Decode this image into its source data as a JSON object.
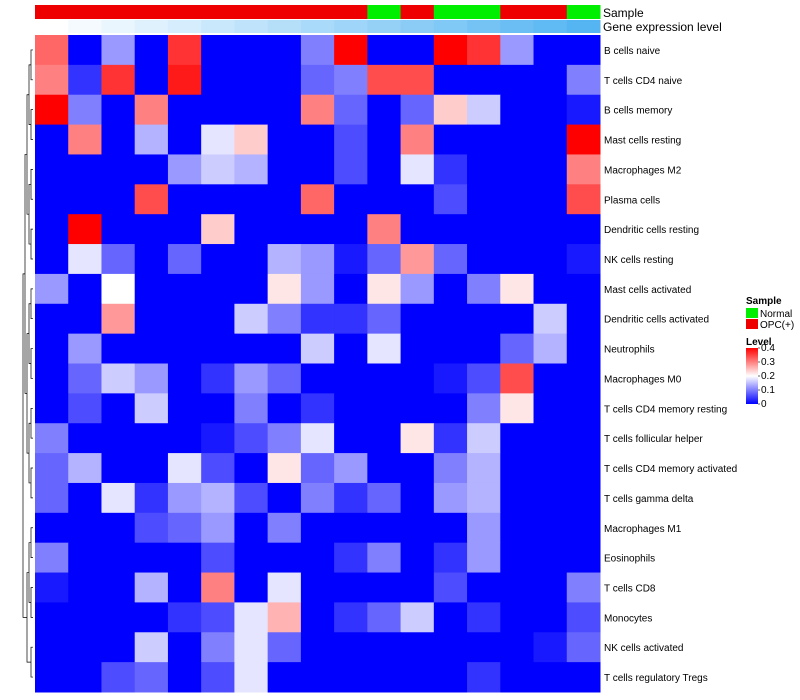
{
  "chart_data": {
    "type": "heatmap",
    "annotation_labels": {
      "sample": "Sample",
      "gene_expression": "Gene expression level"
    },
    "rows": [
      "B cells naive",
      "T cells CD4 naive",
      "B cells memory",
      "Mast cells resting",
      "Macrophages M2",
      "Plasma cells",
      "Dendritic cells resting",
      "NK cells resting",
      "Mast cells activated",
      "Dendritic cells activated",
      "Neutrophils",
      "Macrophages M0",
      "T cells CD4 memory resting",
      "T cells follicular helper",
      "T cells CD4 memory activated",
      "T cells gamma delta",
      "Macrophages M1",
      "Eosinophils",
      "T cells CD8",
      "Monocytes",
      "NK cells activated",
      "T cells regulatory  Tregs"
    ],
    "sample_groups": [
      "OPC(+)",
      "OPC(+)",
      "OPC(+)",
      "OPC(+)",
      "OPC(+)",
      "OPC(+)",
      "OPC(+)",
      "OPC(+)",
      "OPC(+)",
      "OPC(+)",
      "Normal",
      "OPC(+)",
      "Normal",
      "Normal",
      "OPC(+)",
      "OPC(+)",
      "Normal"
    ],
    "expression_level": [
      0.0,
      0.0625,
      0.125,
      0.1875,
      0.25,
      0.3125,
      0.375,
      0.4375,
      0.5,
      0.5625,
      0.625,
      0.6875,
      0.75,
      0.8125,
      0.875,
      0.9375,
      1.0
    ],
    "values": [
      [
        0.32,
        0.0,
        0.12,
        0.0,
        0.36,
        0.0,
        0.0,
        0.0,
        0.1,
        0.4,
        0.0,
        0.0,
        0.4,
        0.36,
        0.12,
        0.0,
        0.0
      ],
      [
        0.3,
        0.04,
        0.36,
        0.0,
        0.38,
        0.0,
        0.0,
        0.0,
        0.08,
        0.1,
        0.34,
        0.34,
        0.0,
        0.0,
        0.0,
        0.0,
        0.1
      ],
      [
        0.4,
        0.1,
        0.0,
        0.3,
        0.0,
        0.0,
        0.0,
        0.0,
        0.3,
        0.08,
        0.0,
        0.08,
        0.24,
        0.16,
        0.0,
        0.0,
        0.02
      ],
      [
        0.0,
        0.3,
        0.0,
        0.14,
        0.0,
        0.18,
        0.24,
        0.0,
        0.0,
        0.06,
        0.0,
        0.3,
        0.0,
        0.0,
        0.0,
        0.0,
        0.4
      ],
      [
        0.0,
        0.0,
        0.0,
        0.0,
        0.12,
        0.16,
        0.14,
        0.0,
        0.0,
        0.06,
        0.0,
        0.18,
        0.04,
        0.0,
        0.0,
        0.0,
        0.3
      ],
      [
        0.0,
        0.0,
        0.0,
        0.34,
        0.0,
        0.0,
        0.0,
        0.0,
        0.32,
        0.0,
        0.0,
        0.0,
        0.06,
        0.0,
        0.0,
        0.0,
        0.34
      ],
      [
        0.0,
        0.4,
        0.0,
        0.0,
        0.0,
        0.24,
        0.0,
        0.0,
        0.0,
        0.0,
        0.3,
        0.0,
        0.0,
        0.0,
        0.0,
        0.0,
        0.0
      ],
      [
        0.0,
        0.18,
        0.08,
        0.0,
        0.08,
        0.0,
        0.0,
        0.14,
        0.12,
        0.02,
        0.08,
        0.28,
        0.08,
        0.0,
        0.0,
        0.0,
        0.02
      ],
      [
        0.12,
        0.0,
        0.2,
        0.0,
        0.0,
        0.0,
        0.0,
        0.22,
        0.12,
        0.0,
        0.22,
        0.12,
        0.0,
        0.1,
        0.22,
        0.0,
        0.0
      ],
      [
        0.0,
        0.0,
        0.28,
        0.0,
        0.0,
        0.0,
        0.16,
        0.1,
        0.04,
        0.04,
        0.08,
        0.0,
        0.0,
        0.0,
        0.0,
        0.16,
        0.0
      ],
      [
        0.0,
        0.12,
        0.0,
        0.0,
        0.0,
        0.0,
        0.0,
        0.0,
        0.16,
        0.0,
        0.18,
        0.0,
        0.0,
        0.0,
        0.08,
        0.14,
        0.0
      ],
      [
        0.0,
        0.08,
        0.16,
        0.12,
        0.0,
        0.04,
        0.12,
        0.08,
        0.0,
        0.0,
        0.0,
        0.0,
        0.02,
        0.06,
        0.34,
        0.0,
        0.0
      ],
      [
        0.0,
        0.06,
        0.0,
        0.16,
        0.0,
        0.0,
        0.1,
        0.0,
        0.04,
        0.0,
        0.0,
        0.0,
        0.0,
        0.1,
        0.22,
        0.0,
        0.0
      ],
      [
        0.1,
        0.0,
        0.0,
        0.0,
        0.0,
        0.02,
        0.06,
        0.1,
        0.18,
        0.0,
        0.0,
        0.22,
        0.04,
        0.16,
        0.0,
        0.0,
        0.0
      ],
      [
        0.08,
        0.14,
        0.0,
        0.0,
        0.18,
        0.06,
        0.0,
        0.22,
        0.08,
        0.12,
        0.0,
        0.0,
        0.1,
        0.14,
        0.0,
        0.0,
        0.0
      ],
      [
        0.08,
        0.0,
        0.18,
        0.04,
        0.12,
        0.14,
        0.06,
        0.0,
        0.1,
        0.04,
        0.08,
        0.0,
        0.12,
        0.14,
        0.0,
        0.0,
        0.0
      ],
      [
        0.0,
        0.0,
        0.0,
        0.06,
        0.08,
        0.12,
        0.0,
        0.1,
        0.0,
        0.0,
        0.0,
        0.0,
        0.0,
        0.12,
        0.0,
        0.0,
        0.0
      ],
      [
        0.1,
        0.0,
        0.0,
        0.0,
        0.0,
        0.06,
        0.0,
        0.0,
        0.0,
        0.04,
        0.1,
        0.0,
        0.04,
        0.12,
        0.0,
        0.0,
        0.0
      ],
      [
        0.02,
        0.0,
        0.0,
        0.14,
        0.0,
        0.3,
        0.0,
        0.18,
        0.0,
        0.0,
        0.0,
        0.0,
        0.06,
        0.0,
        0.0,
        0.0,
        0.1
      ],
      [
        0.0,
        0.0,
        0.0,
        0.0,
        0.04,
        0.06,
        0.18,
        0.26,
        0.0,
        0.04,
        0.08,
        0.16,
        0.0,
        0.04,
        0.0,
        0.0,
        0.06
      ],
      [
        0.0,
        0.0,
        0.0,
        0.16,
        0.0,
        0.1,
        0.18,
        0.08,
        0.0,
        0.0,
        0.0,
        0.0,
        0.0,
        0.0,
        0.0,
        0.02,
        0.08
      ],
      [
        0.0,
        0.0,
        0.06,
        0.08,
        0.0,
        0.06,
        0.18,
        0.0,
        0.0,
        0.0,
        0.0,
        0.0,
        0.0,
        0.04,
        0.0,
        0.0,
        0.0
      ]
    ],
    "legend": {
      "sample_title": "Sample",
      "sample_items": [
        {
          "label": "Normal",
          "color": "#00ee00"
        },
        {
          "label": "OPC(+)",
          "color": "#ee0000"
        }
      ],
      "level_title": "Level",
      "level_ticks": [
        0.4,
        0.3,
        0.2,
        0.1,
        0
      ],
      "level_tick_labels": [
        "0.4",
        "0.3",
        "0.2",
        "0.1",
        "0"
      ]
    },
    "colors": {
      "low": "#0000ff",
      "mid": "#ffffff",
      "high": "#ff0000",
      "normal": "#00ee00",
      "opc": "#ee0000",
      "expr_low": "#ffffff",
      "expr_high": "#55b5f2"
    },
    "value_range": [
      0,
      0.4
    ]
  }
}
